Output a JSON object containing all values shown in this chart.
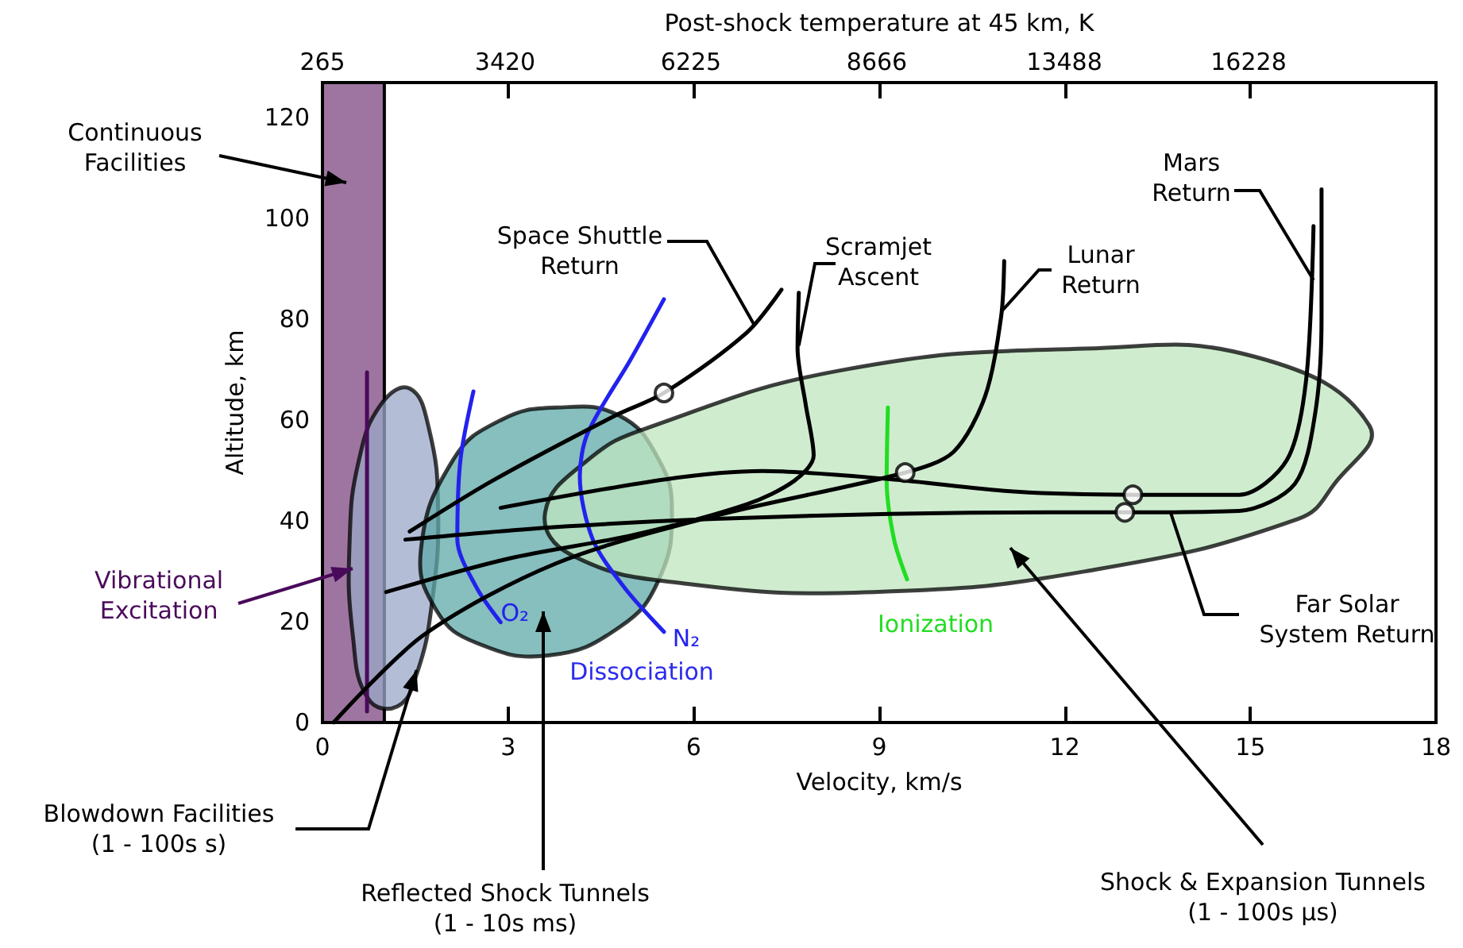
{
  "chart_data": {
    "type": "line",
    "xlabel": "Velocity, km/s",
    "ylabel": "Altitude, km",
    "x2label": "Post-shock temperature at 45 km, K",
    "xlim": [
      0,
      18
    ],
    "xticks": [
      0,
      3,
      6,
      9,
      12,
      15,
      18
    ],
    "ylim": [
      0,
      127
    ],
    "yticks": [
      0,
      20,
      40,
      60,
      80,
      100,
      120
    ],
    "bands": [
      {
        "axis": "x",
        "from": 0,
        "to": 1,
        "color": "#9e75a0"
      }
    ],
    "line_style": "solid",
    "series": [
      {
        "type": "area",
        "color": "#9aa8c8",
        "x": [
          1.41,
          1.72,
          1.87,
          1.77,
          1.52,
          1.21,
          0.74,
          0.49,
          0.44,
          0.59,
          0.95,
          1.41
        ],
        "values": [
          66.3,
          58.4,
          42.6,
          23.7,
          9.5,
          3.2,
          4.7,
          17.4,
          36.3,
          52.1,
          63.2,
          66.3
        ]
      },
      {
        "type": "area",
        "color": "#5fa8a8",
        "x": [
          1.59,
          2.11,
          2.88,
          3.78,
          4.8,
          5.44,
          5.65,
          5.44,
          4.8,
          3.65,
          2.49,
          1.85,
          1.59
        ],
        "values": [
          34.1,
          52.1,
          60.0,
          62.5,
          60.9,
          52.1,
          42.0,
          28.4,
          18.9,
          13.3,
          15.8,
          22.1,
          34.1
        ]
      },
      {
        "type": "area",
        "color": "#bfe6bf",
        "x": [
          3.6,
          4.29,
          5.24,
          8.47,
          12.33,
          15.07,
          16.92,
          16.36,
          15.77,
          12.33,
          8.91,
          5.91,
          4.03,
          3.6
        ],
        "values": [
          41.7,
          52.1,
          58.4,
          70.1,
          74.2,
          72.6,
          59.0,
          47.4,
          40.4,
          30.0,
          25.9,
          27.5,
          33.2,
          41.7
        ]
      },
      {
        "name": "Vibrational\nExcitation",
        "color": "#4a0a5a",
        "x": [
          0.72,
          0.72
        ],
        "values": [
          69.5,
          2.2
        ]
      },
      {
        "name": "O₂",
        "color": "#2222ee",
        "x": [
          2.44,
          2.23,
          2.18,
          2.49,
          2.88
        ],
        "values": [
          65.7,
          52.1,
          36.3,
          26.8,
          19.9
        ]
      },
      {
        "name": "N₂",
        "color": "#2222ee",
        "x": [
          5.52,
          4.98,
          4.29,
          4.16,
          4.37,
          4.88,
          5.52
        ],
        "values": [
          84.0,
          72.0,
          57.5,
          48.9,
          36.3,
          26.8,
          18.0
        ]
      },
      {
        "name": "Ionization",
        "color": "#22dd22",
        "x": [
          9.14,
          9.12,
          9.24,
          9.45
        ],
        "values": [
          62.5,
          48.0,
          36.3,
          28.4
        ]
      },
      {
        "color": "#000000",
        "x": [
          1.41,
          2.75,
          4.73,
          5.52,
          6.86,
          7.42
        ],
        "values": [
          37.9,
          48.0,
          60.9,
          65.4,
          77.4,
          85.9
        ]
      },
      {
        "color": "#000000",
        "x": [
          1.03,
          3.0,
          5.06,
          6.86,
          7.63,
          7.94,
          7.81,
          7.68,
          7.7
        ],
        "values": [
          25.9,
          32.5,
          37.3,
          43.3,
          48.0,
          53.0,
          63.2,
          74.2,
          85.3
        ]
      },
      {
        "color": "#000000",
        "x": [
          0.18,
          1.64,
          3.78,
          6.34,
          9.42,
          10.2,
          10.71,
          10.97,
          11.02
        ],
        "values": [
          0,
          17.4,
          31.6,
          41.0,
          49.6,
          53.7,
          64.7,
          80.5,
          91.6
        ]
      },
      {
        "color": "#000000",
        "x": [
          2.88,
          5.57,
          7.11,
          9.17,
          11.22,
          13.1,
          14.82,
          15.59,
          15.9,
          16.02
        ],
        "values": [
          42.6,
          48.3,
          49.9,
          48.3,
          45.8,
          45.2,
          45.2,
          52.1,
          67.9,
          98.5
        ]
      },
      {
        "color": "#000000",
        "x": [
          1.34,
          3.78,
          6.34,
          9.17,
          11.74,
          12.97,
          14.82,
          15.72,
          16.05,
          16.15,
          16.15
        ],
        "values": [
          36.3,
          38.8,
          40.4,
          41.4,
          41.7,
          41.7,
          42.0,
          47.4,
          61.6,
          80.5,
          105.8
        ]
      },
      {
        "type": "scatter",
        "color": "#ffffff",
        "marker": "circle",
        "x": [
          5.52,
          9.42,
          13.1,
          12.97
        ],
        "values": [
          65.4,
          49.6,
          45.2,
          41.7
        ]
      }
    ],
    "annotations": [
      {
        "text": "Space Shuttle\nReturn",
        "x": 6.98,
        "y": 78.9
      },
      {
        "text": "Scramjet\nAscent",
        "x": 7.7,
        "y": 74.8
      },
      {
        "text": "Lunar\nReturn",
        "x": 10.97,
        "y": 81.5
      },
      {
        "text": "Mars\nReturn",
        "x": 16.02,
        "y": 87.8
      },
      {
        "text": "Far Solar\nSystem Return",
        "x": 13.71,
        "y": 41.7
      },
      "Dissociation",
      "Continuous\nFacilities",
      {
        "text": "Blowdown Facilities\n(1 - 100s s)",
        "x": 1.52,
        "y": 10.4
      },
      "Reflected Shock Tunnels\n(1 - 10s ms)",
      "Shock & Expansion Tunnels\n(1 - 100s µs)",
      "265",
      "3420",
      "6225",
      "8666",
      "13488",
      "16228"
    ]
  }
}
